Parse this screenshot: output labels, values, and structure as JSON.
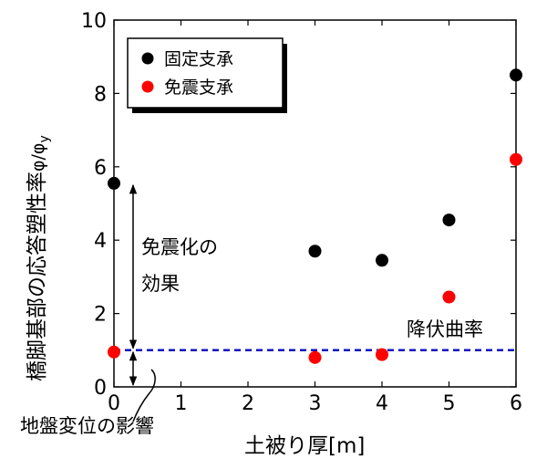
{
  "chart_data": {
    "type": "scatter",
    "xlabel": "土被り厚[m]",
    "ylabel_main": "橋脚基部の応答塑性率",
    "ylabel_symbol": "φ/φ",
    "ylabel_subscript": "y",
    "xlim": [
      0,
      6
    ],
    "ylim": [
      0,
      10
    ],
    "xticks": [
      0,
      1,
      2,
      3,
      4,
      5,
      6
    ],
    "yticks": [
      0,
      2,
      4,
      6,
      8,
      10
    ],
    "legend_position": "top-left",
    "series": [
      {
        "name": "固定支承",
        "color": "#000000",
        "points": [
          [
            0,
            5.55
          ],
          [
            3,
            3.7
          ],
          [
            4,
            3.45
          ],
          [
            5,
            4.55
          ],
          [
            6,
            8.5
          ]
        ]
      },
      {
        "name": "免震支承",
        "color": "#ff0000",
        "points": [
          [
            0,
            0.95
          ],
          [
            3,
            0.8
          ],
          [
            4,
            0.88
          ],
          [
            5,
            2.45
          ],
          [
            6,
            6.2
          ]
        ]
      }
    ],
    "reference_line": {
      "label": "降伏曲率",
      "y": 1.0,
      "color": "#1010c0"
    },
    "annotations": [
      {
        "id": "isolation",
        "lines": [
          "免震化の",
          "効果"
        ],
        "y_from": 1.0,
        "y_to": 5.55
      },
      {
        "id": "ground",
        "text": "地盤変位の影響",
        "y_from": 0.0,
        "y_to": 1.0
      }
    ]
  }
}
